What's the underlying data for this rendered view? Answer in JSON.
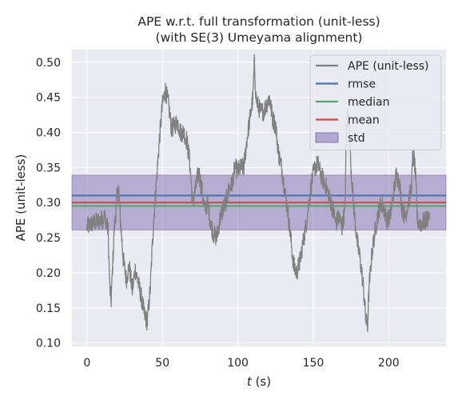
{
  "chart_data": {
    "type": "line",
    "title_line1": "APE w.r.t. full transformation (unit-less)",
    "title_line2": "(with SE(3) Umeyama alignment)",
    "xlabel_var": "t",
    "xlabel_unit": " (s)",
    "ylabel": "APE (unit-less)",
    "xlim": [
      -10,
      238
    ],
    "ylim": [
      0.095,
      0.518
    ],
    "xticks": [
      0,
      50,
      100,
      150,
      200
    ],
    "yticks": [
      0.1,
      0.15,
      0.2,
      0.25,
      0.3,
      0.35,
      0.4,
      0.45,
      0.5
    ],
    "grid": true,
    "legend_position": "top-right",
    "stats": {
      "rmse": 0.31,
      "median": 0.295,
      "mean": 0.3,
      "std": 0.039
    },
    "std_band": [
      0.261,
      0.339
    ],
    "colors": {
      "ape": "#808080",
      "rmse": "#4c72b0",
      "median": "#55a868",
      "mean": "#c44e52",
      "std": "#8172b2",
      "plot_bg": "#eaeaf2",
      "grid": "#ffffff"
    },
    "legend": [
      {
        "key": "ape",
        "label": "APE (unit-less)",
        "kind": "line"
      },
      {
        "key": "rmse",
        "label": "rmse",
        "kind": "line"
      },
      {
        "key": "median",
        "label": "median",
        "kind": "line"
      },
      {
        "key": "mean",
        "label": "mean",
        "kind": "line"
      },
      {
        "key": "std",
        "label": "std",
        "kind": "patch"
      }
    ],
    "series": [
      {
        "key": "ape",
        "x": [
          0,
          3,
          6,
          9,
          12,
          14,
          15,
          16,
          18,
          20,
          21,
          22,
          24,
          26,
          28,
          30,
          32,
          34,
          36,
          38,
          40,
          42,
          44,
          46,
          48,
          50,
          52,
          54,
          56,
          58,
          60,
          62,
          64,
          66,
          68,
          70,
          72,
          74,
          76,
          78,
          80,
          82,
          84,
          86,
          88,
          90,
          92,
          94,
          96,
          98,
          100,
          102,
          104,
          106,
          108,
          110,
          111,
          112,
          113,
          115,
          117,
          119,
          121,
          123,
          125,
          127,
          129,
          131,
          133,
          135,
          137,
          139,
          141,
          143,
          145,
          147,
          149,
          151,
          153,
          155,
          157,
          159,
          161,
          163,
          165,
          167,
          169,
          171,
          172,
          173,
          174,
          175,
          177,
          179,
          181,
          183,
          185,
          186,
          187,
          189,
          191,
          193,
          195,
          197,
          199,
          201,
          203,
          205,
          207,
          209,
          211,
          213,
          215,
          216,
          217,
          218,
          219,
          221,
          223,
          225,
          227
        ],
        "y": [
          0.265,
          0.27,
          0.272,
          0.275,
          0.28,
          0.26,
          0.18,
          0.16,
          0.26,
          0.31,
          0.32,
          0.28,
          0.22,
          0.19,
          0.21,
          0.175,
          0.205,
          0.185,
          0.165,
          0.14,
          0.13,
          0.18,
          0.27,
          0.33,
          0.39,
          0.44,
          0.46,
          0.44,
          0.405,
          0.41,
          0.415,
          0.4,
          0.4,
          0.39,
          0.36,
          0.3,
          0.32,
          0.345,
          0.32,
          0.29,
          0.3,
          0.27,
          0.255,
          0.25,
          0.275,
          0.29,
          0.3,
          0.32,
          0.325,
          0.35,
          0.345,
          0.35,
          0.35,
          0.39,
          0.42,
          0.45,
          0.5,
          0.45,
          0.44,
          0.43,
          0.43,
          0.44,
          0.45,
          0.42,
          0.41,
          0.37,
          0.35,
          0.32,
          0.29,
          0.25,
          0.21,
          0.2,
          0.215,
          0.24,
          0.265,
          0.3,
          0.33,
          0.35,
          0.355,
          0.34,
          0.33,
          0.32,
          0.305,
          0.29,
          0.27,
          0.28,
          0.265,
          0.29,
          0.41,
          0.43,
          0.41,
          0.35,
          0.29,
          0.245,
          0.22,
          0.185,
          0.13,
          0.125,
          0.18,
          0.23,
          0.26,
          0.285,
          0.3,
          0.29,
          0.275,
          0.28,
          0.31,
          0.34,
          0.33,
          0.29,
          0.28,
          0.3,
          0.32,
          0.365,
          0.36,
          0.33,
          0.275,
          0.27,
          0.272,
          0.275,
          0.285
        ]
      }
    ]
  }
}
